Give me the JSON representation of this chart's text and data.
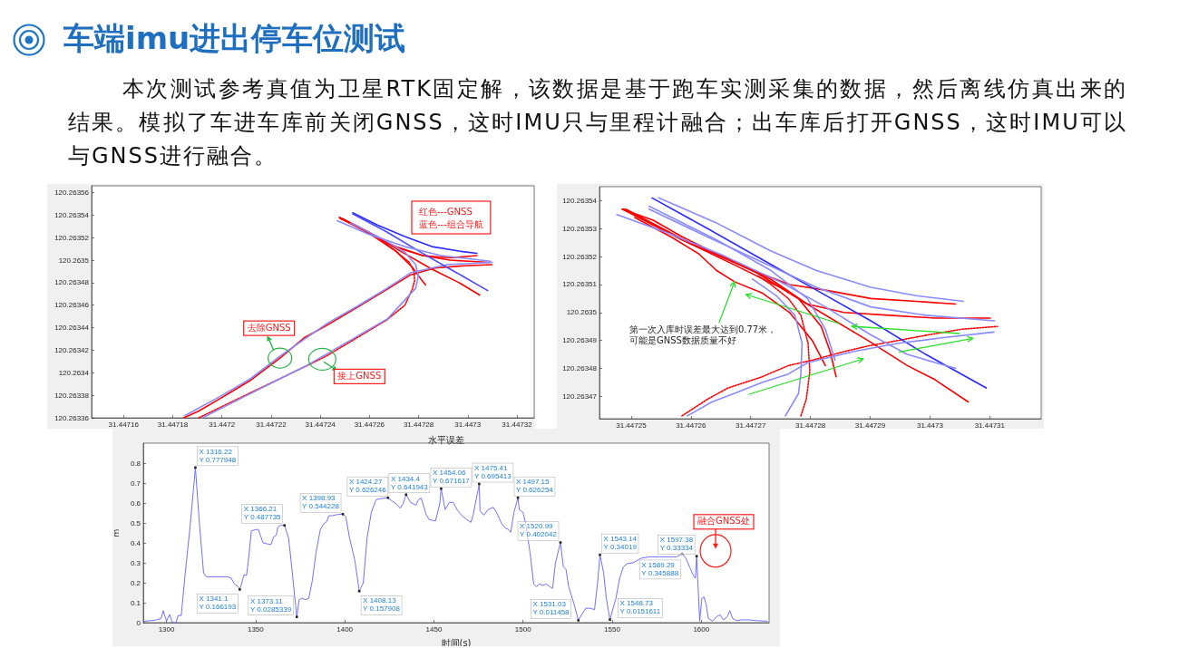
{
  "chart_data": [
    {
      "type": "other",
      "title": "车端imu进出停车位测试",
      "subtitle": "本次测试参考真值为卫星RTK固定解，该数据是基于跑车实测采集的数据，然后离线仿真出来的结果。模拟了车进车库前关闭GNSS，这时IMU只与里程计融合；出车库后打开GNSS，这时IMU可以与GNSS进行融合。"
    },
    {
      "type": "line",
      "xlim": [
        31.447147,
        31.447327
      ],
      "ylim": [
        120.26336,
        120.263566
      ],
      "xticks": [
        31.44716,
        31.44718,
        31.4472,
        31.44722,
        31.44724,
        31.44726,
        31.44728,
        31.4473,
        31.44732
      ],
      "yticks": [
        120.26336,
        120.26338,
        120.2634,
        120.26342,
        120.26344,
        120.26346,
        120.26348,
        120.2635,
        120.26352,
        120.26354,
        120.26356
      ],
      "series": [
        {
          "color": "#ff0000",
          "x": [
            31.4471845,
            31.4471906,
            31.4471992,
            31.4472114,
            31.4472236,
            31.4472334,
            31.4472426,
            31.4472549,
            31.4472671,
            31.4472768,
            31.4472866,
            31.4472988,
            31.4473098
          ],
          "values": [
            120.26336,
            120.263366,
            120.263377,
            120.263393,
            120.263413,
            120.263431,
            120.263442,
            120.263458,
            120.263474,
            120.263487,
            120.263493,
            120.263495,
            120.263496
          ]
        },
        {
          "color": "#ff0000",
          "line_style": "dotted",
          "x": [
            31.4471906,
            31.4472114,
            31.4472334,
            31.4472426,
            31.4472549,
            31.4472671,
            31.4472744,
            31.4472774,
            31.4472784,
            31.4472781,
            31.4472762,
            31.4472707,
            31.4472634,
            31.4472543,
            31.4472477
          ],
          "values": [
            120.26336,
            120.263382,
            120.263405,
            120.263415,
            120.263431,
            120.263447,
            120.26346,
            120.263474,
            120.263482,
            120.26349,
            120.263498,
            120.263508,
            120.26352,
            120.263531,
            120.263538
          ]
        },
        {
          "color": "#ff0000",
          "x": [
            31.4472477,
            31.4472561,
            31.4472652,
            31.4472726,
            31.4472817,
            31.4472927,
            31.4473037
          ],
          "values": [
            120.263538,
            120.263529,
            120.263518,
            120.26351,
            120.263504,
            120.263502,
            120.263504
          ]
        },
        {
          "color": "#ff0000",
          "x": [
            31.4472488,
            31.4472597,
            31.4472707,
            31.4472817,
            31.4472927,
            31.4473085
          ],
          "values": [
            120.263537,
            120.263524,
            120.263512,
            120.263504,
            120.2635,
            120.263498
          ]
        },
        {
          "color": "#ff0000",
          "x": [
            31.447248,
            31.4472597,
            31.4472726,
            31.4472854,
            31.4472964,
            31.4473048
          ],
          "values": [
            120.263537,
            120.263525,
            120.263508,
            120.263492,
            120.26348,
            120.263469
          ]
        },
        {
          "color": "#ff0000",
          "x": [
            31.4472484,
            31.4472597,
            31.4472707,
            31.4472773,
            31.447281,
            31.4472828
          ],
          "values": [
            120.263537,
            120.263524,
            120.263508,
            120.263494,
            120.263483,
            120.263478
          ]
        },
        {
          "color": "#8a8aff",
          "x": [
            31.447185,
            31.4471993,
            31.4472118,
            31.4472238,
            31.4472429,
            31.447255,
            31.4472671,
            31.447277,
            31.4472916,
            31.4473099
          ],
          "values": [
            120.263362,
            120.263379,
            120.263395,
            120.263415,
            120.263444,
            120.263459,
            120.263475,
            120.263489,
            120.263496,
            120.263498
          ]
        },
        {
          "color": "#8a8aff",
          "x": [
            31.447192,
            31.4472341,
            31.4472674,
            31.4472788,
            31.4472799,
            31.4472788,
            31.4472744,
            31.4472652,
            31.4472524
          ],
          "values": [
            120.26336,
            120.263406,
            120.263448,
            120.263475,
            120.263486,
            120.263496,
            120.263507,
            120.263519,
            120.263533
          ]
        },
        {
          "color": "#2a2aff",
          "x": [
            31.4472532,
            31.4472634,
            31.4472744,
            31.4472854,
            31.4472964,
            31.4473037
          ],
          "values": [
            120.263542,
            120.263531,
            120.263521,
            120.263512,
            120.263508,
            120.263506
          ]
        },
        {
          "color": "#4a4aff",
          "x": [
            31.4472532,
            31.4472671,
            31.4472817,
            31.4472945,
            31.4473081
          ],
          "values": [
            120.263541,
            120.263525,
            120.263506,
            120.26349,
            120.263473
          ]
        },
        {
          "color": "#8a8aff",
          "x": [
            31.4472469,
            31.4472597,
            31.4472744,
            31.4472891,
            31.4473092
          ],
          "values": [
            120.263535,
            120.263523,
            120.263512,
            120.263504,
            120.263499
          ]
        }
      ],
      "annotations": [
        "红色---GNSS",
        "蓝色---组合导航",
        {
          "text": "去除GNSS",
          "x": 31.4472236,
          "y": 120.263413
        },
        {
          "text": "接上GNSS",
          "x": 31.4472408,
          "y": 120.263412
        }
      ]
    },
    {
      "type": "line",
      "xlim": [
        31.4472447,
        31.4473186
      ],
      "ylim": [
        120.263462,
        120.263545
      ],
      "xticks": [
        31.44725,
        31.44726,
        31.44727,
        31.44728,
        31.44729,
        31.4473,
        31.44731
      ],
      "yticks": [
        120.26347,
        120.26348,
        120.26349,
        120.2635,
        120.26351,
        120.26352,
        120.26353,
        120.26354
      ],
      "series": [
        {
          "color": "#ff0000",
          "x": [
            31.4472485,
            31.4472537,
            31.4472586,
            31.4472643,
            31.4472704,
            31.4472765,
            31.4472825,
            31.4472901,
            31.4472977,
            31.4473043
          ],
          "values": [
            120.263537,
            120.263533,
            120.263527,
            120.263521,
            120.263515,
            120.26351,
            120.263508,
            120.263505,
            120.263504,
            120.263503
          ]
        },
        {
          "color": "#ff0000",
          "x": [
            31.4472485,
            31.4472585,
            31.4472661,
            31.4472733,
            31.4472795,
            31.4472856,
            31.4472932,
            31.4473008,
            31.4473101
          ],
          "values": [
            120.263537,
            120.263526,
            120.263519,
            120.263512,
            120.263503,
            120.2635,
            120.263499,
            120.263498,
            120.263498
          ]
        },
        {
          "color": "#ff0000",
          "x": [
            31.4472488,
            31.4472585,
            31.4472673,
            31.4472749,
            31.447281,
            31.4472896,
            31.4472962,
            31.4473008,
            31.4473064
          ],
          "values": [
            120.263537,
            120.263526,
            120.263517,
            120.263509,
            120.263501,
            120.26349,
            120.263481,
            120.263476,
            120.263468
          ]
        },
        {
          "color": "#ff0000",
          "x": [
            31.4472491,
            31.4472597,
            31.4472704,
            31.447278,
            31.4472818,
            31.4472833,
            31.4472843
          ],
          "values": [
            120.263537,
            120.263525,
            120.263515,
            120.263505,
            120.263495,
            120.263486,
            120.263477
          ]
        },
        {
          "color": "#ff0000",
          "x": [
            31.4472506,
            31.4472567,
            31.4472613,
            31.4472643,
            31.4472673,
            31.4472719,
            31.4472765,
            31.4472803,
            31.4472825
          ],
          "values": [
            120.263534,
            120.263527,
            120.263521,
            120.263515,
            120.263511,
            120.263507,
            120.2635,
            120.26349,
            120.263481
          ]
        },
        {
          "color": "#ff0000",
          "line_style": "dotted",
          "x": [
            31.4472585,
            31.4472628,
            31.4472662,
            31.4472719,
            31.4472763,
            31.4472804,
            31.4472856,
            31.4472896,
            31.4472947,
            31.4472997,
            31.4473053,
            31.4473113
          ],
          "values": [
            120.263463,
            120.263469,
            120.263473,
            120.263477,
            120.263481,
            120.263483,
            120.263486,
            120.263488,
            120.26349,
            120.263492,
            120.263494,
            120.263495
          ]
        },
        {
          "color": "#ff0000",
          "line_style": "dotted",
          "x": [
            31.4472784,
            31.4472793,
            31.4472799,
            31.4472796,
            31.4472784,
            31.4472763,
            31.4472734,
            31.4472713
          ],
          "values": [
            120.263463,
            120.263469,
            120.263479,
            120.263489,
            120.263499,
            120.263505,
            120.26351,
            120.263513
          ]
        },
        {
          "color": "#2a2aff",
          "x": [
            31.4472535,
            31.4472628,
            31.4472719,
            31.447281,
            31.4472901,
            31.4472993,
            31.4473094
          ],
          "values": [
            120.263541,
            120.26353,
            120.263519,
            120.263508,
            120.263497,
            120.263485,
            120.263473
          ]
        },
        {
          "color": "#8a8aff",
          "x": [
            31.4472476,
            31.4472567,
            31.4472658,
            31.4472749,
            31.4472825,
            31.4472901,
            31.4472962,
            31.4473043
          ],
          "values": [
            120.263535,
            120.263528,
            120.26352,
            120.263511,
            120.263502,
            120.263492,
            120.263485,
            120.26348
          ]
        },
        {
          "color": "#8a8aff",
          "x": [
            31.4472546,
            31.4472643,
            31.4472734,
            31.447281,
            31.4472901,
            31.4472977,
            31.4473056
          ],
          "values": [
            120.263541,
            120.263532,
            120.263522,
            120.263515,
            120.263509,
            120.263506,
            120.263504
          ]
        },
        {
          "color": "#8a8aff",
          "x": [
            31.447253,
            31.4472628,
            31.4472719,
            31.447281,
            31.4472901,
            31.4472993,
            31.4473108
          ],
          "values": [
            120.263537,
            120.263527,
            120.263518,
            120.263509,
            120.263502,
            120.263499,
            120.263497
          ]
        },
        {
          "color": "#8a8aff",
          "x": [
            31.4472594,
            31.4472635,
            31.4472672,
            31.4472719,
            31.4472763,
            31.4472795,
            31.4472871,
            31.4472947,
            31.4473023,
            31.4473107
          ],
          "values": [
            120.263463,
            120.263468,
            120.263471,
            120.263475,
            120.263478,
            120.263482,
            120.263486,
            120.263489,
            120.263491,
            120.263493
          ]
        },
        {
          "color": "#8a8aff",
          "x": [
            31.4472758,
            31.447278,
            31.4472784,
            31.4472786,
            31.4472774,
            31.4472743,
            31.4472703
          ],
          "values": [
            120.263463,
            120.263471,
            120.263478,
            120.263489,
            120.263499,
            120.263506,
            120.263512
          ]
        },
        {
          "color": "#8a8aff",
          "x": [
            31.447253,
            31.4472643,
            31.4472734,
            31.4472795,
            31.4472825,
            31.4472841
          ],
          "values": [
            120.263538,
            120.263526,
            120.263515,
            120.263505,
            120.263494,
            120.263483
          ]
        }
      ],
      "annotations": [
        {
          "text": "第一次入库时误差最大达到0.77米，可能是GNSS数据质量不好",
          "x": 31.4472673,
          "y": 120.263511
        }
      ]
    },
    {
      "type": "line",
      "title": "水平误差",
      "xlabel": "时间(s)",
      "ylabel": "m",
      "color": "#7070ff",
      "xlim": [
        1287,
        1638
      ],
      "ylim": [
        0,
        0.9
      ],
      "xticks": [
        1300,
        1350,
        1400,
        1450,
        1500,
        1550,
        1600
      ],
      "yticks": [
        0,
        0.1,
        0.2,
        0.3,
        0.4,
        0.5,
        0.6,
        0.7,
        0.8
      ],
      "x": [
        1287.5,
        1291.1,
        1294,
        1297,
        1298.2,
        1300,
        1301.8,
        1303.3,
        1305.4,
        1306.5,
        1308.3,
        1310.4,
        1313.4,
        1316.22,
        1318.5,
        1320.8,
        1322.3,
        1334.2,
        1336.3,
        1338.1,
        1340.2,
        1341.1,
        1342.3,
        1343.5,
        1344.9,
        1346.1,
        1347.6,
        1350,
        1351.5,
        1353,
        1354.2,
        1356.5,
        1358.6,
        1360.1,
        1361.6,
        1362.5,
        1364,
        1366.21,
        1368.5,
        1369.9,
        1373.11,
        1374.4,
        1375.9,
        1378,
        1379.8,
        1381.8,
        1383.9,
        1386.3,
        1388.1,
        1389.9,
        1391.1,
        1392.9,
        1395.2,
        1398.93,
        1400.6,
        1402.7,
        1405.7,
        1408.13,
        1410.4,
        1412.5,
        1414.9,
        1417.6,
        1420.5,
        1424.27,
        1426.5,
        1428.9,
        1431,
        1432.7,
        1434.4,
        1436.9,
        1439.9,
        1441.4,
        1442.9,
        1444.3,
        1445.8,
        1447.3,
        1450.9,
        1453.3,
        1454.06,
        1456.3,
        1458.7,
        1460.8,
        1463,
        1465.4,
        1468.4,
        1470.8,
        1472,
        1475.41,
        1475.9,
        1478,
        1480.4,
        1483.4,
        1485.5,
        1488,
        1490.1,
        1491.9,
        1493.1,
        1494.9,
        1497.15,
        1497.9,
        1500,
        1501.5,
        1503.9,
        1506,
        1507.5,
        1509.3,
        1511.1,
        1513,
        1515.1,
        1516.6,
        1518.1,
        1520.99,
        1522.6,
        1524.1,
        1525.6,
        1528.6,
        1531.03,
        1533.1,
        1535.2,
        1537.7,
        1540.1,
        1541.9,
        1543.14,
        1545.2,
        1546.7,
        1548.73,
        1552.1,
        1554.2,
        1556.3,
        1558.7,
        1561.7,
        1566.3,
        1570.8,
        1576.8,
        1582.8,
        1585.8,
        1588,
        1589.29,
        1591.3,
        1593.4,
        1595.5,
        1596.7,
        1597.38,
        1599.1,
        1600.3,
        1601.5,
        1602.7,
        1603.9,
        1606.3,
        1608.4,
        1610.5,
        1612.3,
        1614.5,
        1616,
        1617.5,
        1619.6,
        1622.6,
        1626.5,
        1631,
        1637
      ],
      "values": [
        0.007,
        0.01,
        0.013,
        0.021,
        0.06,
        0.007,
        0.041,
        0,
        0,
        0.036,
        0.036,
        0.237,
        0.496,
        0.777948,
        0.495,
        0.25,
        0.23,
        0.23,
        0.223,
        0.194,
        0.18,
        0.166193,
        0.2,
        0.24,
        0.237,
        0.323,
        0.46,
        0.467,
        0.467,
        0.43,
        0.4,
        0.395,
        0.392,
        0.43,
        0.438,
        0.48,
        0.488,
        0.487735,
        0.424,
        0.31,
        0.0285339,
        0.115,
        0.122,
        0.115,
        0.122,
        0.21,
        0.352,
        0.467,
        0.495,
        0.507,
        0.536,
        0.536,
        0.541,
        0.544228,
        0.531,
        0.424,
        0.31,
        0.157908,
        0.2,
        0.424,
        0.553,
        0.617,
        0.622,
        0.626246,
        0.61,
        0.596,
        0.574,
        0.596,
        0.641943,
        0.603,
        0.589,
        0.617,
        0.624,
        0.582,
        0.539,
        0.517,
        0.51,
        0.596,
        0.671617,
        0.567,
        0.603,
        0.603,
        0.567,
        0.539,
        0.517,
        0.503,
        0.539,
        0.695413,
        0.56,
        0.539,
        0.567,
        0.578,
        0.546,
        0.496,
        0.474,
        0.467,
        0.453,
        0.553,
        0.626254,
        0.567,
        0.553,
        0.496,
        0.352,
        0.194,
        0.18,
        0.194,
        0.187,
        0.194,
        0.18,
        0.172,
        0.295,
        0.402042,
        0.28,
        0.266,
        0.18,
        0.093,
        0.011458,
        0.043,
        0.072,
        0.072,
        0.065,
        0.208,
        0.34019,
        0.251,
        0.122,
        0.0151611,
        0.122,
        0.223,
        0.28,
        0.297,
        0.3,
        0.323,
        0.33,
        0.33,
        0.33,
        0.329,
        0.338,
        0.345888,
        0.323,
        0.28,
        0.237,
        0.223,
        0.33334,
        0.007,
        0.122,
        0.129,
        0.093,
        0.022,
        0.007,
        0.029,
        0.039,
        0.014,
        0.029,
        0.06,
        0.022,
        0.01,
        0.014,
        0.014,
        0.01,
        0.007
      ],
      "annotations": [
        {
          "text": "X 1316.22\nY 0.777948",
          "x": 1316.22,
          "y": 0.777948
        },
        {
          "text": "X 1341.1\nY 0.166193",
          "x": 1341.1,
          "y": 0.166193
        },
        {
          "text": "X 1366.21\nY 0.487735",
          "x": 1366.21,
          "y": 0.487735
        },
        {
          "text": "X 1373.11\nY 0.0285339",
          "x": 1373.11,
          "y": 0.0285339
        },
        {
          "text": "X 1398.93\nY 0.544228",
          "x": 1398.93,
          "y": 0.544228
        },
        {
          "text": "X 1408.13\nY 0.157908",
          "x": 1408.13,
          "y": 0.157908
        },
        {
          "text": "X 1424.27\nY 0.626246",
          "x": 1424.27,
          "y": 0.626246
        },
        {
          "text": "X 1434.4\nY 0.641943",
          "x": 1434.4,
          "y": 0.641943
        },
        {
          "text": "X 1454.06\nY 0.671617",
          "x": 1454.06,
          "y": 0.671617
        },
        {
          "text": "X 1475.41\nY 0.695413",
          "x": 1475.41,
          "y": 0.695413
        },
        {
          "text": "X 1497.15\nY 0.626254",
          "x": 1497.15,
          "y": 0.626254
        },
        {
          "text": "X 1520.99\nY 0.402042",
          "x": 1520.99,
          "y": 0.402042
        },
        {
          "text": "X 1531.03\nY 0.011458",
          "x": 1531.03,
          "y": 0.011458
        },
        {
          "text": "X 1543.14\nY 0.34019",
          "x": 1543.14,
          "y": 0.34019
        },
        {
          "text": "X 1548.73\nY 0.0151611",
          "x": 1548.73,
          "y": 0.0151611
        },
        {
          "text": "X 1589.29\nY 0.345888",
          "x": 1589.29,
          "y": 0.345888
        },
        {
          "text": "X 1597.38\nY 0.33334",
          "x": 1597.38,
          "y": 0.33334
        },
        {
          "text": "融合GNSS处",
          "x": 1608,
          "y": 0.36
        }
      ]
    }
  ]
}
